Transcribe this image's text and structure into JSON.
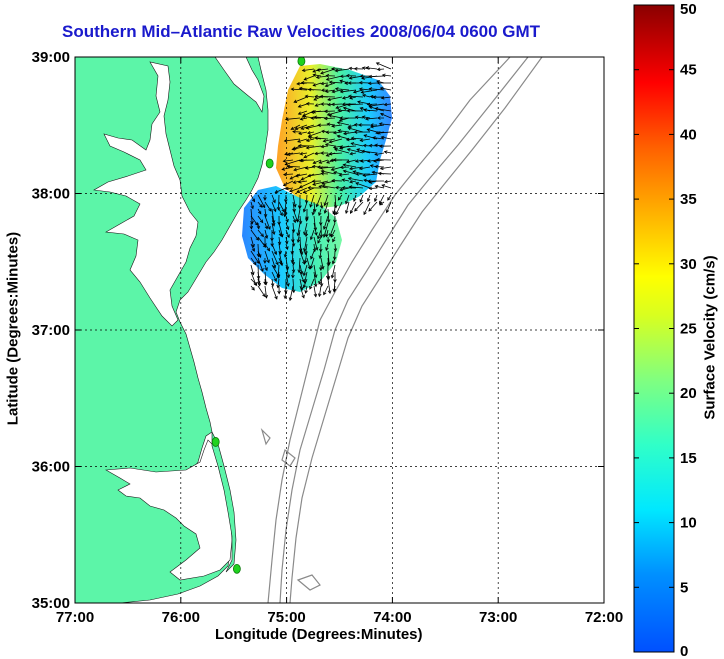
{
  "title": "Southern Mid–Atlantic Raw Velocities 2008/06/04 0600 GMT",
  "colors": {
    "land": "#5cf5a8",
    "title": "#1a1acc",
    "bathymetry": "#8a8a8a",
    "station": "#1fd21f"
  },
  "chart_data": {
    "type": "map",
    "xlabel": "Longitude (Degrees:Minutes)",
    "ylabel": "Latitude (Degrees:Minutes)",
    "xlim": [
      -77,
      -72
    ],
    "ylim": [
      35,
      39
    ],
    "x_ticks": [
      {
        "v": -77,
        "label": "77:00"
      },
      {
        "v": -76,
        "label": "76:00"
      },
      {
        "v": -75,
        "label": "75:00"
      },
      {
        "v": -74,
        "label": "74:00"
      },
      {
        "v": -73,
        "label": "73:00"
      },
      {
        "v": -72,
        "label": "72:00"
      }
    ],
    "y_ticks": [
      {
        "v": 35,
        "label": "35:00"
      },
      {
        "v": 36,
        "label": "36:00"
      },
      {
        "v": 37,
        "label": "37:00"
      },
      {
        "v": 38,
        "label": "38:00"
      },
      {
        "v": 39,
        "label": "39:00"
      }
    ],
    "grid": true,
    "stations": [
      {
        "lon": -74.86,
        "lat": 38.97
      },
      {
        "lon": -75.16,
        "lat": 38.22
      },
      {
        "lon": -75.67,
        "lat": 36.18
      },
      {
        "lon": -75.47,
        "lat": 35.25
      }
    ],
    "colorbar": {
      "label": "Surface Velocity (cm/s)",
      "min": 0,
      "max": 50,
      "ticks": [
        0,
        5,
        10,
        15,
        20,
        25,
        30,
        35,
        40,
        45,
        50
      ]
    }
  }
}
